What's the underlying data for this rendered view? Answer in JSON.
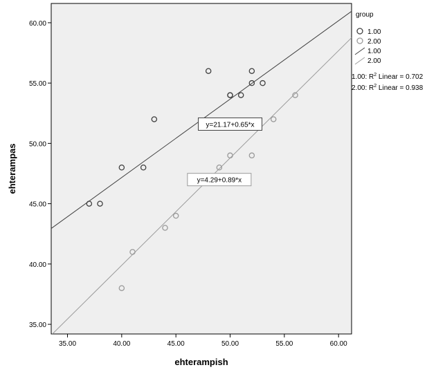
{
  "chart_data": {
    "type": "scatter",
    "xlabel": "ehterampish",
    "ylabel": "ehterampas",
    "xlim": [
      33.5,
      61.2
    ],
    "ylim": [
      34.2,
      61.6
    ],
    "xticks": [
      35,
      40,
      45,
      50,
      55,
      60
    ],
    "yticks": [
      35,
      40,
      45,
      50,
      55,
      60
    ],
    "xtick_labels": [
      "35.00",
      "40.00",
      "45.00",
      "50.00",
      "55.00",
      "60.00"
    ],
    "ytick_labels": [
      "35.00",
      "40.00",
      "45.00",
      "50.00",
      "55.00",
      "60.00"
    ],
    "grid": false,
    "legend": {
      "title": "group",
      "position": "right",
      "marker_entries": [
        "1.00",
        "2.00"
      ],
      "line_entries": [
        "1.00",
        "2.00"
      ],
      "fit_stats": [
        {
          "prefix": "1.00: R",
          "sup": "2",
          "suffix": " Linear = 0.702"
        },
        {
          "prefix": "2.00: R",
          "sup": "2",
          "suffix": " Linear = 0.938"
        }
      ]
    },
    "series": [
      {
        "name": "1.00",
        "color": "#404040",
        "x": [
          37,
          38,
          40,
          42,
          43,
          48,
          50,
          50,
          51,
          52,
          52,
          53
        ],
        "y": [
          45,
          45,
          48,
          48,
          52,
          56,
          54,
          54,
          54,
          55,
          56,
          55
        ],
        "fit": {
          "intercept": 21.17,
          "slope": 0.65,
          "equation": "y=21.17+0.65*x"
        }
      },
      {
        "name": "2.00",
        "color": "#9a9a9a",
        "x": [
          40,
          41,
          44,
          45,
          49,
          50,
          52,
          54,
          56
        ],
        "y": [
          38,
          41,
          43,
          44,
          48,
          49,
          49,
          52,
          54
        ],
        "fit": {
          "intercept": 4.29,
          "slope": 0.89,
          "equation": "y=4.29+0.89*x"
        }
      }
    ]
  }
}
